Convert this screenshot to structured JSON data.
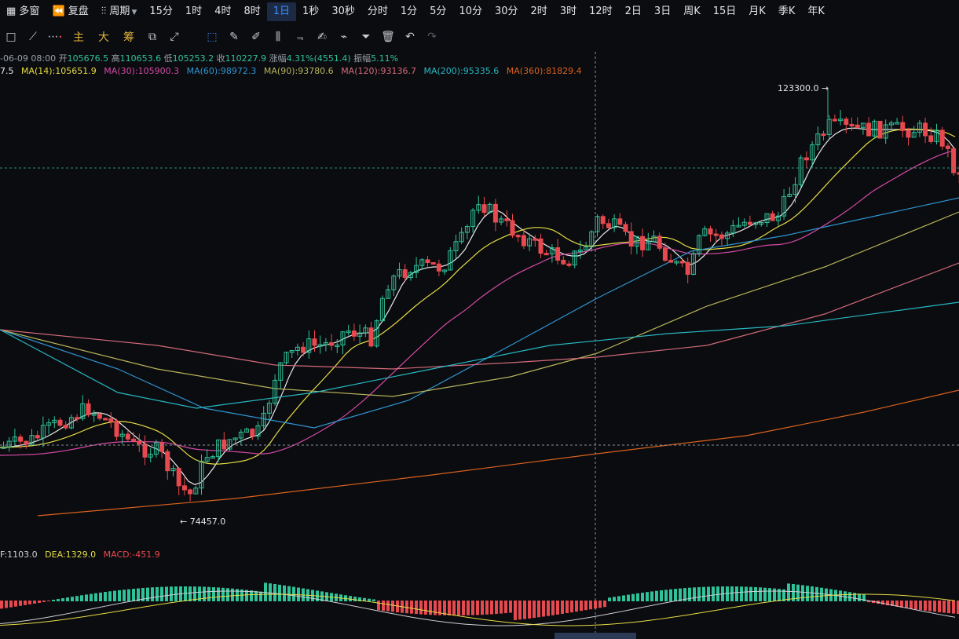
{
  "toolbar": {
    "items": [
      "多窗",
      "复盘",
      "周期",
      "15分",
      "1时",
      "4时",
      "8时",
      "1日",
      "1秒",
      "30秒",
      "分时",
      "1分",
      "5分",
      "10分",
      "30分",
      "2时",
      "3时",
      "12时",
      "2日",
      "3日",
      "周K",
      "15日",
      "月K",
      "季K",
      "年K"
    ],
    "active": "1日"
  },
  "tools": {
    "main_label": "主",
    "big_label": "大",
    "chip_label": "筹",
    "icons": [
      "square-icon",
      "line-icon",
      "more-icon",
      "gap",
      "gap",
      "gap",
      "gap",
      "indicator-icon",
      "ruler-icon",
      "pen-icon",
      "bars-icon",
      "fib-icon",
      "note-icon",
      "brush-icon",
      "filter-icon",
      "trash-icon",
      "undo-icon",
      "redo-icon"
    ]
  },
  "ohlc": {
    "date": "-06-09 08:00",
    "open_label": "开",
    "open": "105676.5",
    "high_label": "高",
    "high": "110653.6",
    "low_label": "低",
    "low": "105253.2",
    "close_label": "收",
    "close": "110227.9",
    "chg_label": "涨幅",
    "chg": "4.31%(4551.4)",
    "amp_label": "振幅",
    "amp": "5.11%"
  },
  "ma": {
    "ma_first": "7.5",
    "ma14": "MA(14):105651.9",
    "ma30": "MA(30):105900.3",
    "ma60": "MA(60):98972.3",
    "ma90": "MA(90):93780.6",
    "ma120": "MA(120):93136.7",
    "ma200": "MA(200):95335.6",
    "ma360": "MA(360):81829.4"
  },
  "colors": {
    "up": "#2fc39a",
    "down": "#e8494f",
    "ma_first": "#e9e9e9",
    "ma14": "#e6dc45",
    "ma30": "#d54aa8",
    "ma60": "#2e95d3",
    "ma90": "#b7b35a",
    "ma120": "#d36b7b",
    "ma200": "#27b8c4",
    "ma360": "#d9621f",
    "dif": "#cfcfd4",
    "dea": "#e6dc45"
  },
  "annotations": {
    "high_mark": "123300.0 →",
    "low_mark": "← 74457.0"
  },
  "macd": {
    "dif": "F:1103.0",
    "dea": "DEA:1329.0",
    "macd": "MACD:-451.9"
  },
  "chart_data": {
    "type": "candlestick",
    "price_high": 123300.0,
    "price_low": 74457.0,
    "series": [
      {
        "name": "MA(14)",
        "last": 105651.9
      },
      {
        "name": "MA(30)",
        "last": 105900.3
      },
      {
        "name": "MA(60)",
        "last": 98972.3
      },
      {
        "name": "MA(90)",
        "last": 93780.6
      },
      {
        "name": "MA(120)",
        "last": 93136.7
      },
      {
        "name": "MA(200)",
        "last": 95335.6
      },
      {
        "name": "MA(360)",
        "last": 81829.4
      }
    ]
  }
}
